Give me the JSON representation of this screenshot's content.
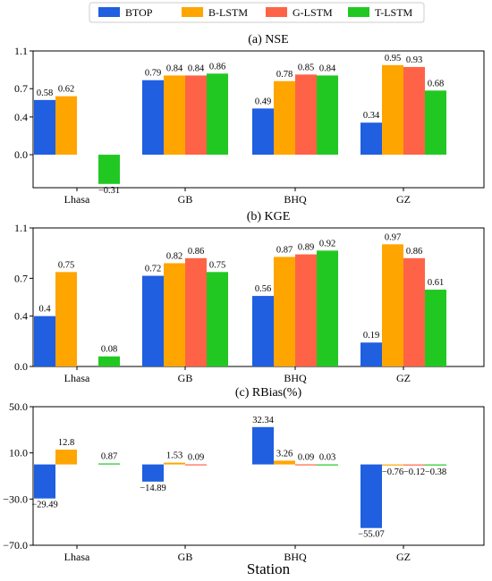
{
  "legend": [
    {
      "name": "BTOP",
      "color": "#1f5fe0"
    },
    {
      "name": "B-LSTM",
      "color": "#ffa500"
    },
    {
      "name": "G-LSTM",
      "color": "#ff6347"
    },
    {
      "name": "T-LSTM",
      "color": "#22c822"
    }
  ],
  "xlabel": "Station",
  "chart_data": [
    {
      "type": "bar",
      "title": "(a) NSE",
      "categories": [
        "Lhasa",
        "GB",
        "BHQ",
        "GZ"
      ],
      "ylim": [
        -0.35,
        1.1
      ],
      "yticks": [
        1.1,
        0.7,
        0.4,
        0.0
      ],
      "ytick_labels": [
        "1.1",
        "0.7",
        "0.4",
        "0.0"
      ],
      "series": [
        {
          "name": "BTOP",
          "values": [
            0.58,
            0.79,
            0.49,
            0.34
          ],
          "labels": [
            "0.58",
            "0.79",
            "0.49",
            "0.34"
          ]
        },
        {
          "name": "B-LSTM",
          "values": [
            0.62,
            0.84,
            0.78,
            0.95
          ],
          "labels": [
            "0.62",
            "0.84",
            "0.78",
            "0.95"
          ]
        },
        {
          "name": "G-LSTM",
          "values": [
            null,
            0.84,
            0.85,
            0.93
          ],
          "labels": [
            null,
            "0.84",
            "0.85",
            "0.93"
          ]
        },
        {
          "name": "T-LSTM",
          "values": [
            -0.31,
            0.86,
            0.84,
            0.68
          ],
          "labels": [
            "−0.31",
            "0.86",
            "0.84",
            "0.68"
          ]
        }
      ]
    },
    {
      "type": "bar",
      "title": "(b) KGE",
      "categories": [
        "Lhasa",
        "GB",
        "BHQ",
        "GZ"
      ],
      "ylim": [
        0.0,
        1.1
      ],
      "yticks": [
        1.1,
        0.7,
        0.4,
        0.0
      ],
      "ytick_labels": [
        "1.1",
        "0.7",
        "0.4",
        "0.0"
      ],
      "series": [
        {
          "name": "BTOP",
          "values": [
            0.4,
            0.72,
            0.56,
            0.19
          ],
          "labels": [
            "0.4",
            "0.72",
            "0.56",
            "0.19"
          ]
        },
        {
          "name": "B-LSTM",
          "values": [
            0.75,
            0.82,
            0.87,
            0.97
          ],
          "labels": [
            "0.75",
            "0.82",
            "0.87",
            "0.97"
          ]
        },
        {
          "name": "G-LSTM",
          "values": [
            null,
            0.86,
            0.89,
            0.86
          ],
          "labels": [
            null,
            "0.86",
            "0.89",
            "0.86"
          ]
        },
        {
          "name": "T-LSTM",
          "values": [
            0.08,
            0.75,
            0.92,
            0.61
          ],
          "labels": [
            "0.08",
            "0.75",
            "0.92",
            "0.61"
          ]
        }
      ]
    },
    {
      "type": "bar",
      "title": "(c) RBias(%)",
      "categories": [
        "Lhasa",
        "GB",
        "BHQ",
        "GZ"
      ],
      "ylim": [
        -70.0,
        50.0
      ],
      "yticks": [
        50,
        10,
        -30,
        -70
      ],
      "ytick_labels": [
        "50.0",
        "10.0",
        "−30.0",
        "−70.0"
      ],
      "series": [
        {
          "name": "BTOP",
          "values": [
            -29.49,
            -14.89,
            32.34,
            -55.07
          ],
          "labels": [
            "−29.49",
            "−14.89",
            "32.34",
            "−55.07"
          ]
        },
        {
          "name": "B-LSTM",
          "values": [
            12.8,
            1.53,
            3.26,
            -0.76
          ],
          "labels": [
            "12.8",
            "1.53",
            "3.26",
            "−0.76"
          ]
        },
        {
          "name": "G-LSTM",
          "values": [
            null,
            0.09,
            0.09,
            -0.12
          ],
          "labels": [
            null,
            "0.09",
            "0.09",
            "−0.12"
          ]
        },
        {
          "name": "T-LSTM",
          "values": [
            0.87,
            null,
            0.03,
            -0.38
          ],
          "labels": [
            "0.87",
            null,
            "0.03",
            "−0.38"
          ]
        }
      ]
    }
  ]
}
